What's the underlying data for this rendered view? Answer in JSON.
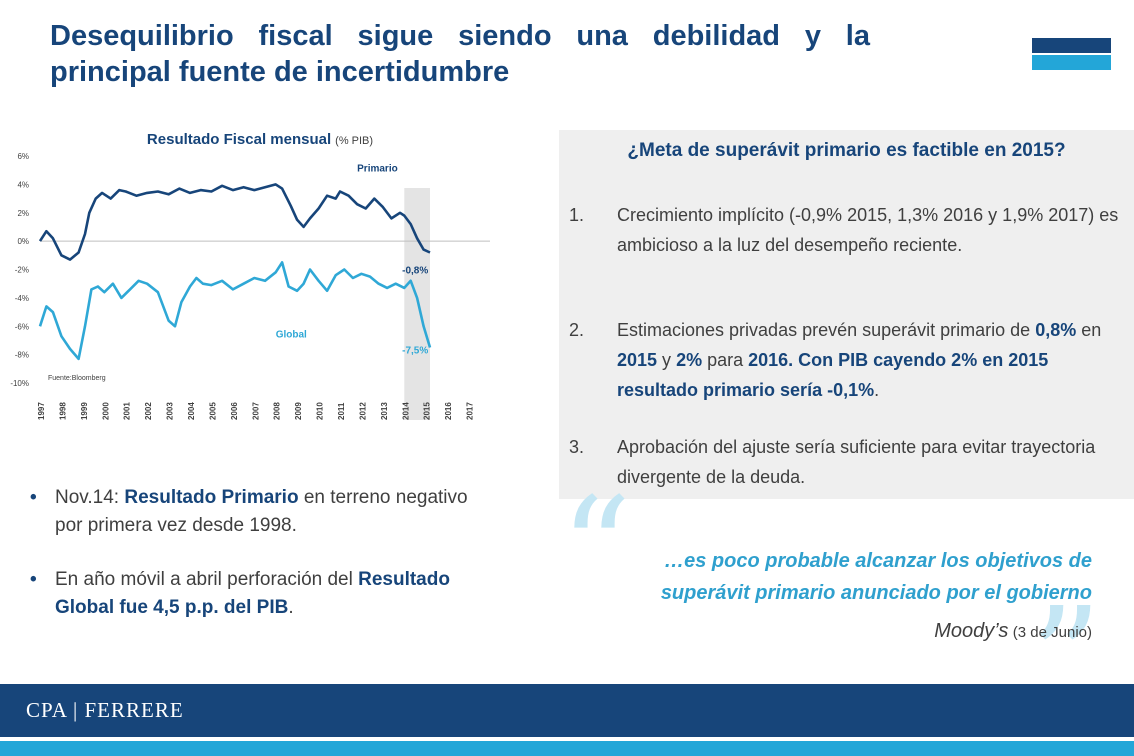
{
  "header": {
    "title": "Desequilibrio fiscal sigue siendo una debilidad y la principal fuente de incertidumbre"
  },
  "chart_data": {
    "type": "line",
    "title": "Resultado Fiscal mensual",
    "title_unit": "(% PIB)",
    "source": "Fuente:Bloomberg",
    "ylim": [
      -10,
      6
    ],
    "yticks": [
      "6%",
      "4%",
      "2%",
      "0%",
      "-2%",
      "-4%",
      "-6%",
      "-8%",
      "-10%"
    ],
    "xlim": [
      1997,
      2018
    ],
    "xticks": [
      "1997",
      "1998",
      "1999",
      "2000",
      "2001",
      "2002",
      "2003",
      "2004",
      "2005",
      "2006",
      "2007",
      "2008",
      "2009",
      "2010",
      "2011",
      "2012",
      "2013",
      "2014",
      "2015",
      "2016",
      "2017"
    ],
    "shaded_range": [
      2014,
      2015.2
    ],
    "series": [
      {
        "name": "Primario",
        "color": "#17457a",
        "end_label": "-0,8%",
        "x": [
          1997.0,
          1997.3,
          1997.6,
          1998.0,
          1998.4,
          1998.8,
          1999.1,
          1999.3,
          1999.6,
          1999.9,
          2000.3,
          2000.7,
          2001.0,
          2001.5,
          2002.0,
          2002.5,
          2003.0,
          2003.5,
          2004.0,
          2004.5,
          2005.0,
          2005.5,
          2006.0,
          2006.5,
          2007.0,
          2007.5,
          2008.0,
          2008.3,
          2008.7,
          2009.0,
          2009.3,
          2009.6,
          2010.0,
          2010.4,
          2010.8,
          2011.0,
          2011.4,
          2011.8,
          2012.2,
          2012.6,
          2013.0,
          2013.4,
          2013.8,
          2014.0,
          2014.3,
          2014.6,
          2014.9,
          2015.2
        ],
        "y": [
          0.0,
          0.7,
          0.2,
          -1.0,
          -1.3,
          -0.8,
          0.5,
          2.0,
          3.0,
          3.4,
          3.0,
          3.6,
          3.5,
          3.2,
          3.4,
          3.5,
          3.3,
          3.7,
          3.4,
          3.6,
          3.5,
          3.9,
          3.6,
          3.8,
          3.6,
          3.8,
          4.0,
          3.7,
          2.5,
          1.5,
          1.0,
          1.6,
          2.3,
          3.2,
          3.0,
          3.5,
          3.2,
          2.6,
          2.3,
          3.0,
          2.4,
          1.6,
          2.0,
          1.8,
          1.2,
          0.2,
          -0.6,
          -0.8
        ]
      },
      {
        "name": "Global",
        "color": "#2fa8d6",
        "end_label": "-7,5%",
        "x": [
          1997.0,
          1997.3,
          1997.6,
          1998.0,
          1998.4,
          1998.8,
          1999.1,
          1999.4,
          1999.7,
          2000.0,
          2000.4,
          2000.8,
          2001.2,
          2001.6,
          2002.0,
          2002.5,
          2003.0,
          2003.3,
          2003.6,
          2004.0,
          2004.3,
          2004.6,
          2005.0,
          2005.5,
          2006.0,
          2006.5,
          2007.0,
          2007.5,
          2008.0,
          2008.3,
          2008.6,
          2009.0,
          2009.3,
          2009.6,
          2010.0,
          2010.4,
          2010.8,
          2011.2,
          2011.6,
          2012.0,
          2012.4,
          2012.8,
          2013.2,
          2013.6,
          2014.0,
          2014.3,
          2014.6,
          2014.9,
          2015.2
        ],
        "y": [
          -6.0,
          -4.6,
          -5.0,
          -6.7,
          -7.6,
          -8.3,
          -6.0,
          -3.4,
          -3.2,
          -3.6,
          -3.0,
          -4.0,
          -3.4,
          -2.8,
          -3.0,
          -3.6,
          -5.6,
          -6.0,
          -4.3,
          -3.2,
          -2.6,
          -3.0,
          -3.1,
          -2.8,
          -3.4,
          -3.0,
          -2.6,
          -2.8,
          -2.2,
          -1.5,
          -3.2,
          -3.5,
          -3.0,
          -2.0,
          -2.8,
          -3.5,
          -2.4,
          -2.0,
          -2.6,
          -2.3,
          -2.5,
          -3.0,
          -3.3,
          -3.0,
          -3.3,
          -2.8,
          -4.0,
          -6.0,
          -7.5
        ]
      }
    ]
  },
  "bullets": [
    {
      "parts": [
        {
          "text": "Nov.14: ",
          "bold": false
        },
        {
          "text": "Resultado Primario",
          "bold": true
        },
        {
          "text": " en terreno negativo por primera vez desde 1998.",
          "bold": false
        }
      ]
    },
    {
      "parts": [
        {
          "text": "En año móvil a abril perforación del ",
          "bold": false
        },
        {
          "text": "Resultado Global fue 4,5 p.p. del PIB",
          "bold": true
        },
        {
          "text": ".",
          "bold": false
        }
      ]
    }
  ],
  "box": {
    "title": "¿Meta de superávit primario es factible en 2015?",
    "items": [
      {
        "num": "1.",
        "parts": [
          {
            "text": "Crecimiento implícito (-0,9% 2015, 1,3% 2016 y 1,9% 2017) es ambicioso a la luz del desempeño reciente.",
            "bold": false
          }
        ]
      },
      {
        "num": "2.",
        "parts": [
          {
            "text": "Estimaciones privadas prevén superávit primario de ",
            "bold": false
          },
          {
            "text": "0,8%",
            "bold": true
          },
          {
            "text": " en ",
            "bold": false
          },
          {
            "text": "2015",
            "bold": true
          },
          {
            "text": " y ",
            "bold": false
          },
          {
            "text": "2%",
            "bold": true
          },
          {
            "text": " para ",
            "bold": false
          },
          {
            "text": "2016.  Con PIB cayendo 2% en 2015 resultado primario sería -0,1%",
            "bold": true
          },
          {
            "text": ".",
            "bold": false
          }
        ]
      },
      {
        "num": "3.",
        "parts": [
          {
            "text": "Aprobación del ajuste sería suficiente para evitar trayectoria divergente de la deuda.",
            "bold": false
          }
        ]
      }
    ]
  },
  "quote": {
    "open_mark": "“",
    "close_mark": "”",
    "text": "…es poco probable alcanzar  los objetivos de superávit primario anunciado por el gobierno",
    "author": "Moody’s",
    "date": "(3 de Junio)"
  },
  "footer": {
    "brand": "CPA | FERRERE"
  },
  "colors": {
    "navy": "#17457a",
    "accent_blue": "#23a6d8",
    "quote_blue": "#2fa0ce",
    "box_bg": "#efefef"
  }
}
